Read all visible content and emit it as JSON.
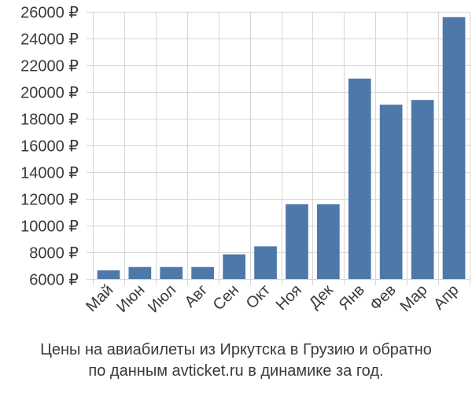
{
  "chart_data": {
    "type": "bar",
    "categories": [
      "Май",
      "Июн",
      "Июл",
      "Авг",
      "Сен",
      "Окт",
      "Ноя",
      "Дек",
      "Янв",
      "Фев",
      "Мар",
      "Апр"
    ],
    "values": [
      6650,
      6900,
      6900,
      6900,
      7850,
      8450,
      11600,
      11600,
      21000,
      19050,
      19400,
      25600
    ],
    "ylim": [
      6000,
      26000
    ],
    "yticks": [
      6000,
      8000,
      10000,
      12000,
      14000,
      16000,
      18000,
      20000,
      22000,
      24000,
      26000
    ],
    "ytick_labels": [
      "6000 ₽",
      "8000 ₽",
      "10000 ₽",
      "12000 ₽",
      "14000 ₽",
      "16000 ₽",
      "18000 ₽",
      "20000 ₽",
      "22000 ₽",
      "24000 ₽",
      "26000 ₽"
    ],
    "grid": true,
    "bar_color": "#4e78a8",
    "grid_color": "#d6d6d6"
  },
  "caption": {
    "line1": "Цены на авиабилеты из Иркутска в Грузию и обратно",
    "line2": "по данным avticket.ru в динамике за год."
  }
}
